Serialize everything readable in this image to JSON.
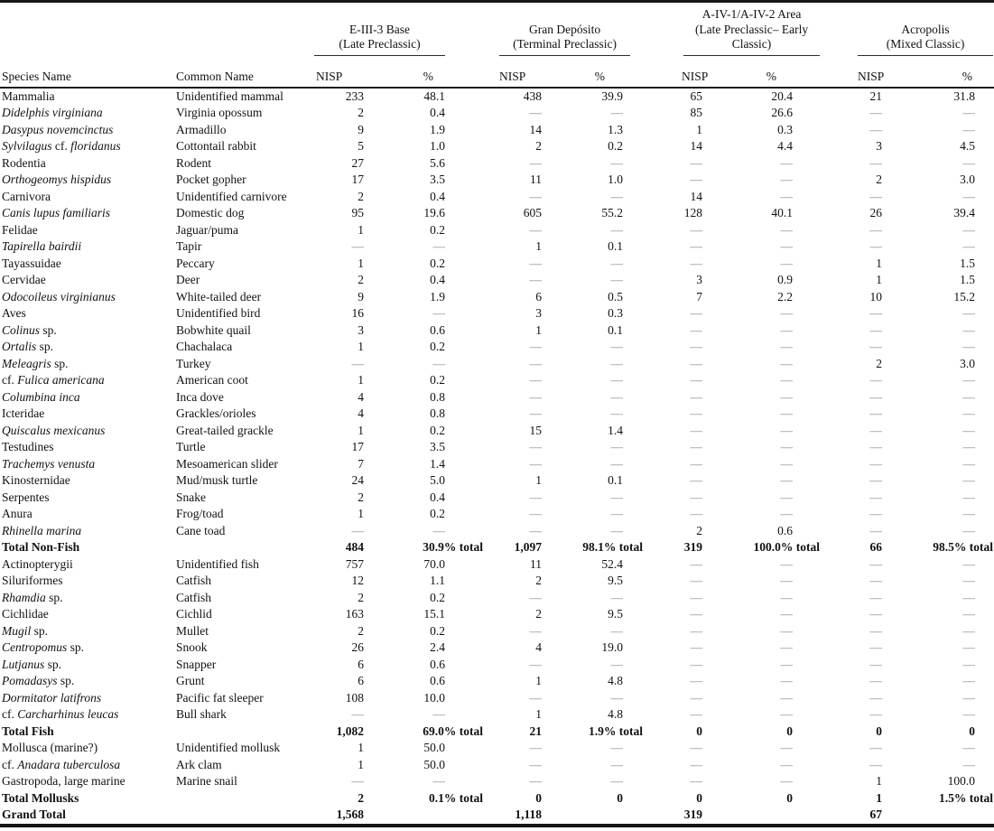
{
  "table": {
    "species_header": "Species Name",
    "common_header": "Common Name",
    "col_headers": {
      "nisp": "NISP",
      "pct": "%"
    },
    "dash": "—",
    "groups": [
      {
        "name": "E-III-3 Base",
        "lines": [
          "E-III-3 Base",
          "(Late Preclassic)"
        ]
      },
      {
        "name": "Gran Depósito",
        "lines": [
          "Gran Depósito",
          "(Terminal Preclassic)"
        ]
      },
      {
        "name": "A-IV-1/A-IV-2 Area",
        "lines": [
          "A-IV-1/A-IV-2 Area",
          "(Late Preclassic– Early",
          "Classic)"
        ]
      },
      {
        "name": "Acropolis",
        "lines": [
          "Acropolis",
          "(Mixed Classic)"
        ]
      }
    ],
    "rows": [
      {
        "species": "Mammalia",
        "common": "Unidentified mammal",
        "bold": false,
        "values": [
          "233",
          "48.1",
          "438",
          "39.9",
          "65",
          "20.4",
          "21",
          "31.8"
        ]
      },
      {
        "species": "*Didelphis virginiana*",
        "common": "Virginia opossum",
        "bold": false,
        "values": [
          "2",
          "0.4",
          "—",
          "—",
          "85",
          "26.6",
          "—",
          "—"
        ]
      },
      {
        "species": "*Dasypus novemcinctus*",
        "common": "Armadillo",
        "bold": false,
        "values": [
          "9",
          "1.9",
          "14",
          "1.3",
          "1",
          "0.3",
          "—",
          "—"
        ]
      },
      {
        "species": "*Sylvilagus* cf. *floridanus*",
        "common": "Cottontail rabbit",
        "bold": false,
        "values": [
          "5",
          "1.0",
          "2",
          "0.2",
          "14",
          "4.4",
          "3",
          "4.5"
        ]
      },
      {
        "species": "Rodentia",
        "common": "Rodent",
        "bold": false,
        "values": [
          "27",
          "5.6",
          "—",
          "—",
          "—",
          "—",
          "—",
          "—"
        ]
      },
      {
        "species": "*Orthogeomys hispidus*",
        "common": "Pocket gopher",
        "bold": false,
        "values": [
          "17",
          "3.5",
          "11",
          "1.0",
          "—",
          "—",
          "2",
          "3.0"
        ]
      },
      {
        "species": "Carnivora",
        "common": "Unidentified carnivore",
        "bold": false,
        "values": [
          "2",
          "0.4",
          "—",
          "—",
          "14",
          "—",
          "—",
          "—"
        ]
      },
      {
        "species": "*Canis lupus familiaris*",
        "common": "Domestic dog",
        "bold": false,
        "values": [
          "95",
          "19.6",
          "605",
          "55.2",
          "128",
          "40.1",
          "26",
          "39.4"
        ]
      },
      {
        "species": "Felidae",
        "common": "Jaguar/puma",
        "bold": false,
        "values": [
          "1",
          "0.2",
          "—",
          "—",
          "—",
          "—",
          "—",
          "—"
        ]
      },
      {
        "species": "*Tapirella bairdii*",
        "common": "Tapir",
        "bold": false,
        "values": [
          "—",
          "—",
          "1",
          "0.1",
          "—",
          "—",
          "—",
          "—"
        ]
      },
      {
        "species": "Tayassuidae",
        "common": "Peccary",
        "bold": false,
        "values": [
          "1",
          "0.2",
          "—",
          "—",
          "—",
          "—",
          "1",
          "1.5"
        ]
      },
      {
        "species": "Cervidae",
        "common": "Deer",
        "bold": false,
        "values": [
          "2",
          "0.4",
          "—",
          "—",
          "3",
          "0.9",
          "1",
          "1.5"
        ]
      },
      {
        "species": "*Odocoileus virginianus*",
        "common": "White-tailed deer",
        "bold": false,
        "values": [
          "9",
          "1.9",
          "6",
          "0.5",
          "7",
          "2.2",
          "10",
          "15.2"
        ]
      },
      {
        "species": "Aves",
        "common": "Unidentified bird",
        "bold": false,
        "values": [
          "16",
          "—",
          "3",
          "0.3",
          "—",
          "—",
          "—",
          "—"
        ]
      },
      {
        "species": "*Colinus* sp.",
        "common": "Bobwhite quail",
        "bold": false,
        "values": [
          "3",
          "0.6",
          "1",
          "0.1",
          "—",
          "—",
          "—",
          "—"
        ]
      },
      {
        "species": "*Ortalis* sp.",
        "common": "Chachalaca",
        "bold": false,
        "values": [
          "1",
          "0.2",
          "—",
          "—",
          "—",
          "—",
          "—",
          "—"
        ]
      },
      {
        "species": "*Meleagris* sp.",
        "common": "Turkey",
        "bold": false,
        "values": [
          "—",
          "—",
          "—",
          "—",
          "—",
          "—",
          "2",
          "3.0"
        ]
      },
      {
        "species": "cf. *Fulica americana*",
        "common": "American coot",
        "bold": false,
        "values": [
          "1",
          "0.2",
          "—",
          "—",
          "—",
          "—",
          "—",
          "—"
        ]
      },
      {
        "species": "*Columbina inca*",
        "common": "Inca dove",
        "bold": false,
        "values": [
          "4",
          "0.8",
          "—",
          "—",
          "—",
          "—",
          "—",
          "—"
        ]
      },
      {
        "species": "Icteridae",
        "common": "Grackles/orioles",
        "bold": false,
        "values": [
          "4",
          "0.8",
          "—",
          "—",
          "—",
          "—",
          "—",
          "—"
        ]
      },
      {
        "species": "*Quiscalus mexicanus*",
        "common": "Great-tailed grackle",
        "bold": false,
        "values": [
          "1",
          "0.2",
          "15",
          "1.4",
          "—",
          "—",
          "—",
          "—"
        ]
      },
      {
        "species": "Testudines",
        "common": "Turtle",
        "bold": false,
        "values": [
          "17",
          "3.5",
          "—",
          "—",
          "—",
          "—",
          "—",
          "—"
        ]
      },
      {
        "species": "*Trachemys venusta*",
        "common": "Mesoamerican slider",
        "bold": false,
        "values": [
          "7",
          "1.4",
          "—",
          "—",
          "—",
          "—",
          "—",
          "—"
        ]
      },
      {
        "species": "Kinosternidae",
        "common": "Mud/musk turtle",
        "bold": false,
        "values": [
          "24",
          "5.0",
          "1",
          "0.1",
          "—",
          "—",
          "—",
          "—"
        ]
      },
      {
        "species": "Serpentes",
        "common": "Snake",
        "bold": false,
        "values": [
          "2",
          "0.4",
          "—",
          "—",
          "—",
          "—",
          "—",
          "—"
        ]
      },
      {
        "species": "Anura",
        "common": "Frog/toad",
        "bold": false,
        "values": [
          "1",
          "0.2",
          "—",
          "—",
          "—",
          "—",
          "—",
          "—"
        ]
      },
      {
        "species": "*Rhinella marina*",
        "common": "Cane toad",
        "bold": false,
        "values": [
          "—",
          "—",
          "—",
          "—",
          "2",
          "0.6",
          "—",
          "—"
        ]
      },
      {
        "species": "Total Non-Fish",
        "common": "",
        "bold": true,
        "values": [
          "484",
          "30.9% total",
          "1,097",
          "98.1% total",
          "319",
          "100.0% total",
          "66",
          "98.5% total"
        ]
      },
      {
        "species": "Actinopterygii",
        "common": "Unidentified fish",
        "bold": false,
        "values": [
          "757",
          "70.0",
          "11",
          "52.4",
          "—",
          "—",
          "—",
          "—"
        ]
      },
      {
        "species": "Siluriformes",
        "common": "Catfish",
        "bold": false,
        "values": [
          "12",
          "1.1",
          "2",
          "9.5",
          "—",
          "—",
          "—",
          "—"
        ]
      },
      {
        "species": "*Rhamdia* sp.",
        "common": "Catfish",
        "bold": false,
        "values": [
          "2",
          "0.2",
          "—",
          "—",
          "—",
          "—",
          "—",
          "—"
        ]
      },
      {
        "species": "Cichlidae",
        "common": "Cichlid",
        "bold": false,
        "values": [
          "163",
          "15.1",
          "2",
          "9.5",
          "—",
          "—",
          "—",
          "—"
        ]
      },
      {
        "species": "*Mugil* sp.",
        "common": "Mullet",
        "bold": false,
        "values": [
          "2",
          "0.2",
          "—",
          "—",
          "—",
          "—",
          "—",
          "—"
        ]
      },
      {
        "species": "*Centropomus* sp.",
        "common": "Snook",
        "bold": false,
        "values": [
          "26",
          "2.4",
          "4",
          "19.0",
          "—",
          "—",
          "—",
          "—"
        ]
      },
      {
        "species": "*Lutjanus* sp.",
        "common": "Snapper",
        "bold": false,
        "values": [
          "6",
          "0.6",
          "—",
          "—",
          "—",
          "—",
          "—",
          "—"
        ]
      },
      {
        "species": "*Pomadasys* sp.",
        "common": "Grunt",
        "bold": false,
        "values": [
          "6",
          "0.6",
          "1",
          "4.8",
          "—",
          "—",
          "—",
          "—"
        ]
      },
      {
        "species": "*Dormitator latifrons*",
        "common": "Pacific fat sleeper",
        "bold": false,
        "values": [
          "108",
          "10.0",
          "—",
          "—",
          "—",
          "—",
          "—",
          "—"
        ]
      },
      {
        "species": "cf. *Carcharhinus leucas*",
        "common": "Bull shark",
        "bold": false,
        "values": [
          "—",
          "—",
          "1",
          "4.8",
          "—",
          "—",
          "—",
          "—"
        ]
      },
      {
        "species": "Total Fish",
        "common": "",
        "bold": true,
        "values": [
          "1,082",
          "69.0% total",
          "21",
          "1.9% total",
          "0",
          "0",
          "0",
          "0"
        ]
      },
      {
        "species": "Mollusca (marine?)",
        "common": "Unidentified mollusk",
        "bold": false,
        "values": [
          "1",
          "50.0",
          "—",
          "—",
          "—",
          "—",
          "—",
          "—"
        ]
      },
      {
        "species": "cf. *Anadara tuberculosa*",
        "common": "Ark clam",
        "bold": false,
        "values": [
          "1",
          "50.0",
          "—",
          "—",
          "—",
          "—",
          "—",
          "—"
        ]
      },
      {
        "species": "Gastropoda, large marine",
        "common": "Marine snail",
        "bold": false,
        "values": [
          "—",
          "—",
          "—",
          "—",
          "—",
          "—",
          "1",
          "100.0"
        ]
      },
      {
        "species": "Total Mollusks",
        "common": "",
        "bold": true,
        "values": [
          "2",
          "0.1% total",
          "0",
          "0",
          "0",
          "0",
          "1",
          "1.5% total"
        ]
      },
      {
        "species": "Grand Total",
        "common": "",
        "bold": true,
        "values": [
          "1,568",
          "",
          "1,118",
          "",
          "319",
          "",
          "67",
          ""
        ]
      }
    ]
  },
  "colors": {
    "text": "#111111",
    "dash_gray": "#8c8c8c",
    "rule_black": "#151515"
  }
}
